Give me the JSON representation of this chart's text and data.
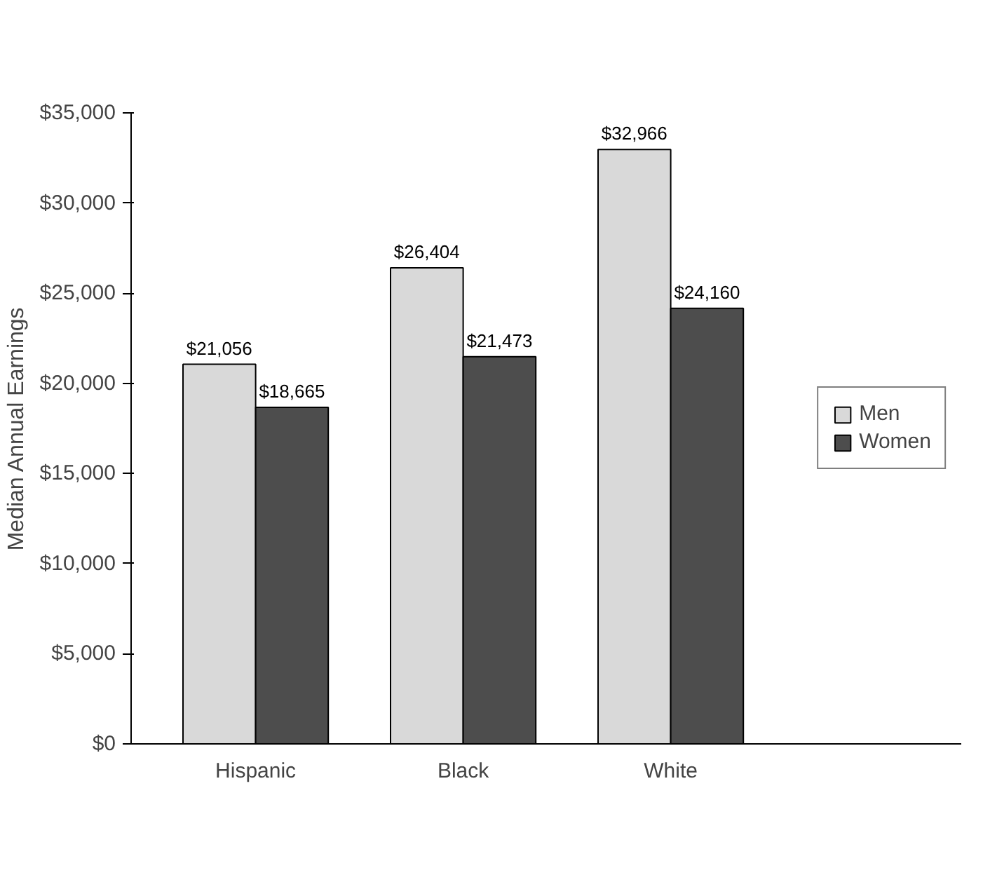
{
  "chart_data": {
    "type": "bar",
    "ylabel": "Median Annual Earnings",
    "categories": [
      "Hispanic",
      "Black",
      "White"
    ],
    "series": [
      {
        "name": "Men",
        "color": "#d9d9d9",
        "values": [
          21056,
          26404,
          32966
        ],
        "value_labels": [
          "$21,056",
          "$26,404",
          "$32,966"
        ]
      },
      {
        "name": "Women",
        "color": "#4d4d4d",
        "values": [
          18665,
          21473,
          24160
        ],
        "value_labels": [
          "$18,665",
          "$21,473",
          "$24,160"
        ]
      }
    ],
    "ylim": [
      0,
      35000
    ],
    "yticks": [
      {
        "value": 0,
        "label": "$0"
      },
      {
        "value": 5000,
        "label": "$5,000"
      },
      {
        "value": 10000,
        "label": "$10,000"
      },
      {
        "value": 15000,
        "label": "$15,000"
      },
      {
        "value": 20000,
        "label": "$20,000"
      },
      {
        "value": 25000,
        "label": "$25,000"
      },
      {
        "value": 30000,
        "label": "$30,000"
      },
      {
        "value": 35000,
        "label": "$35,000"
      }
    ],
    "grid": false,
    "legend": "right"
  }
}
